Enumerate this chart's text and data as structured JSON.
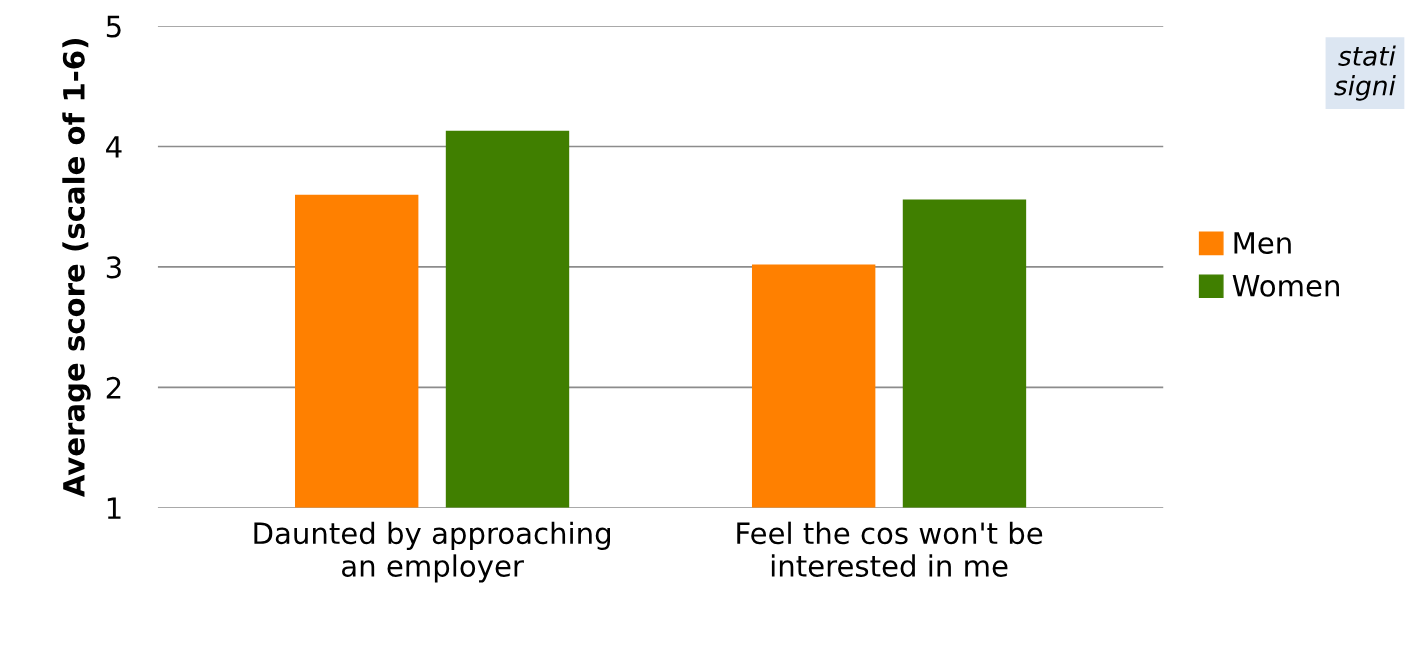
{
  "chart_data": {
    "type": "bar",
    "ylabel": "Average score (scale of 1-6)",
    "categories": [
      "Daunted by approaching\nan employer",
      "Feel the cos won't be\ninterested in me"
    ],
    "series": [
      {
        "name": "Men",
        "color": "#ff8000",
        "values": [
          3.6,
          3.02
        ]
      },
      {
        "name": "Women",
        "color": "#407f00",
        "values": [
          4.13,
          3.56
        ]
      }
    ],
    "ylim": [
      1,
      5
    ],
    "yticks": [
      1,
      2,
      3,
      4,
      5
    ],
    "grid": "y",
    "legend": "right",
    "annotations": [
      "stati\nsigni"
    ]
  }
}
